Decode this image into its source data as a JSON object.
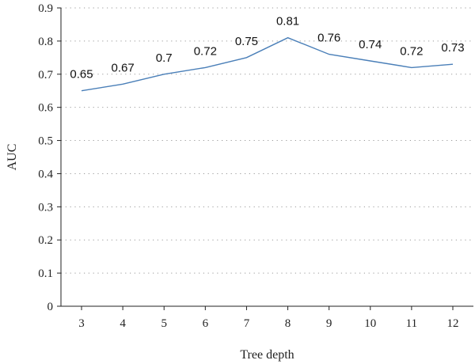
{
  "chart_data": {
    "type": "line",
    "title": "",
    "xlabel": "Tree depth",
    "ylabel": "AUC",
    "x": [
      3,
      4,
      5,
      6,
      7,
      8,
      9,
      10,
      11,
      12
    ],
    "x_tick_labels": [
      "3",
      "4",
      "5",
      "6",
      "7",
      "8",
      "9",
      "10",
      "11",
      "12"
    ],
    "series": [
      {
        "values": [
          0.65,
          0.67,
          0.7,
          0.72,
          0.75,
          0.81,
          0.76,
          0.74,
          0.72,
          0.73
        ],
        "labels": [
          "0.65",
          "0.67",
          "0.7",
          "0.72",
          "0.75",
          "0.81",
          "0.76",
          "0.74",
          "0.72",
          "0.73"
        ],
        "color": "#4a7fb8"
      }
    ],
    "ylim": [
      0,
      0.9
    ],
    "y_ticks": [
      0,
      0.1,
      0.2,
      0.3,
      0.4,
      0.5,
      0.6,
      0.7,
      0.8,
      0.9
    ],
    "y_tick_labels": [
      "0",
      "0.1",
      "0.2",
      "0.3",
      "0.4",
      "0.5",
      "0.6",
      "0.7",
      "0.8",
      "0.9"
    ],
    "grid": "horizontal-dotted",
    "legend": "none"
  }
}
